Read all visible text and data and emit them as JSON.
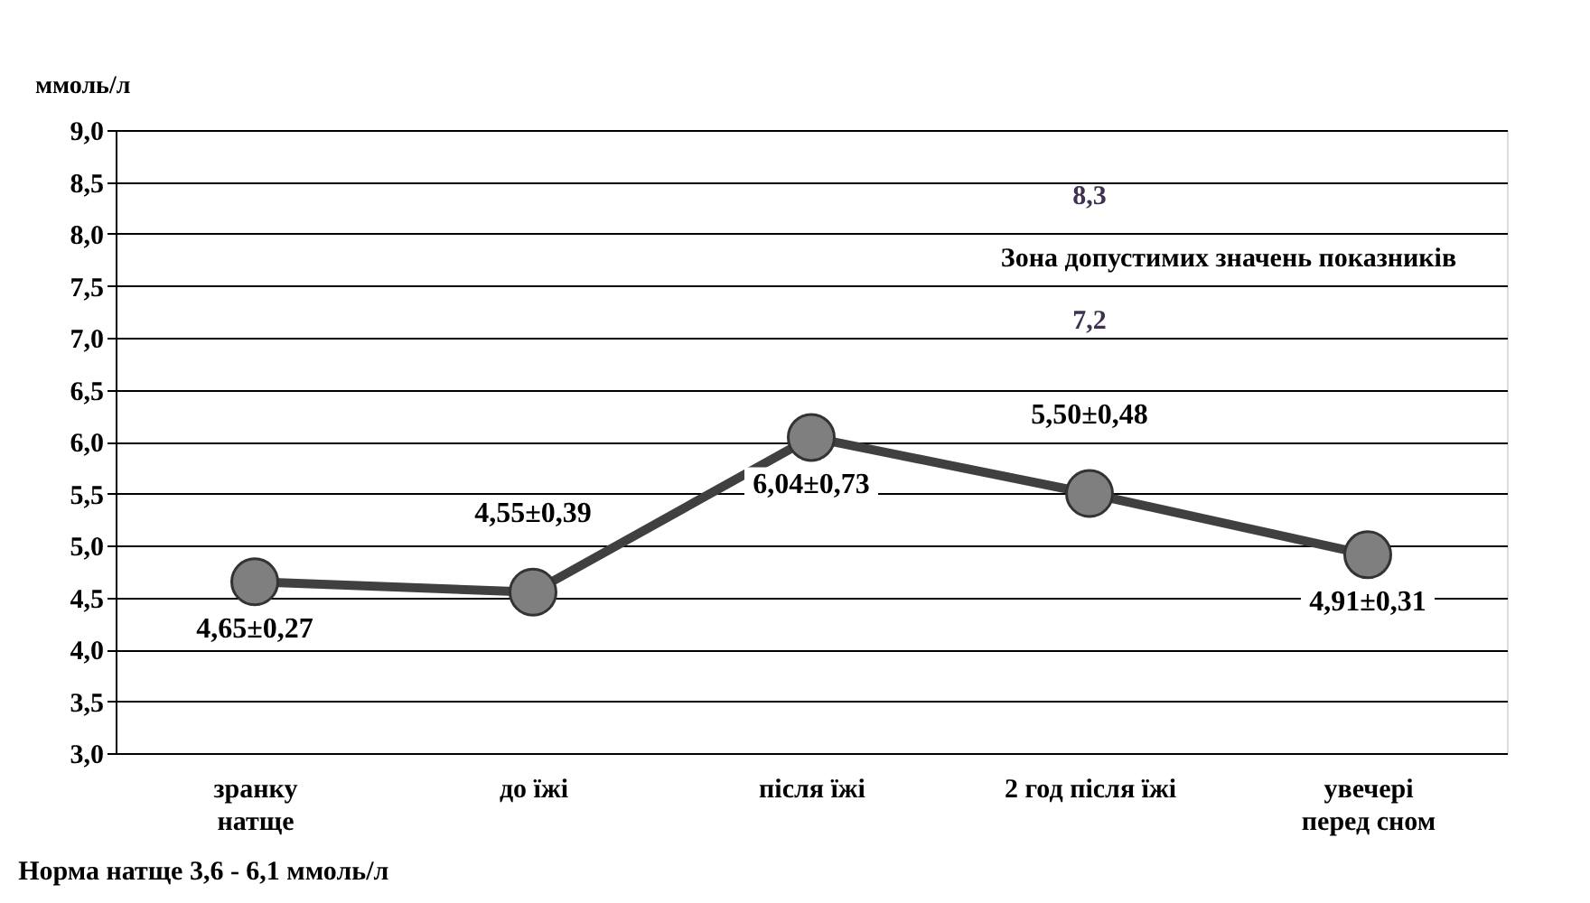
{
  "chart_data": {
    "type": "line",
    "ylabel": "ммоль/л",
    "categories": [
      "зранку\nнатще",
      "до їжі",
      "після їжі",
      "2 год після їжі",
      "увечері\nперед сном"
    ],
    "series": [
      {
        "color": "#404040",
        "values": [
          4.65,
          4.55,
          6.04,
          5.5,
          4.91
        ],
        "value_labels": [
          "4,65±0,27",
          "4,55±0,39",
          "6,04±0,73",
          "5,50±0,48",
          "4,91±0,31"
        ]
      }
    ],
    "ylim": [
      3.0,
      9.0
    ],
    "yticks": [
      {
        "value": 3.0,
        "label": "3,0"
      },
      {
        "value": 3.5,
        "label": "3,5"
      },
      {
        "value": 4.0,
        "label": "4,0"
      },
      {
        "value": 4.5,
        "label": "4,5"
      },
      {
        "value": 5.0,
        "label": "5,0"
      },
      {
        "value": 5.5,
        "label": "5,5"
      },
      {
        "value": 6.0,
        "label": "6,0"
      },
      {
        "value": 6.5,
        "label": "6,5"
      },
      {
        "value": 7.0,
        "label": "7,0"
      },
      {
        "value": 7.5,
        "label": "7,5"
      },
      {
        "value": 8.0,
        "label": "8,0"
      },
      {
        "value": 8.5,
        "label": "8,5"
      },
      {
        "value": 9.0,
        "label": "9,0"
      }
    ],
    "grid": "y",
    "marker": "circle",
    "line_style": "solid",
    "annotations": [
      "8,3",
      "Зона допустимих значень показників",
      "7,2",
      "Норма натще  3,6 - 6,1 ммоль/л"
    ]
  }
}
